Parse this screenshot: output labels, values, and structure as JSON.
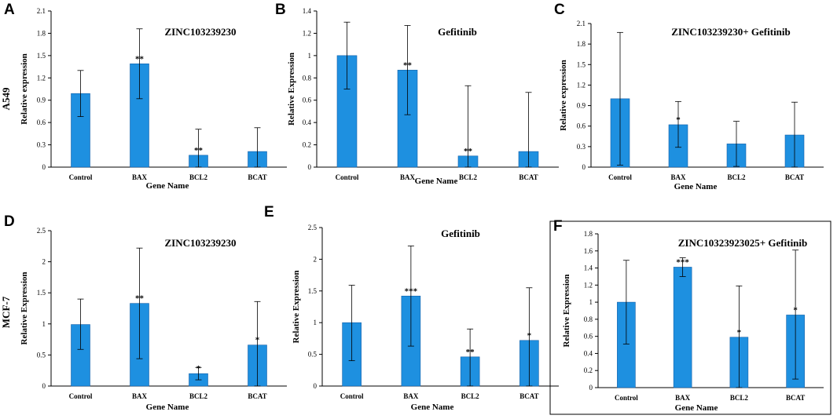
{
  "rows": [
    {
      "label": "A549"
    },
    {
      "label": "MCF-7"
    }
  ],
  "chart_data": [
    {
      "type": "bar",
      "panel": "A",
      "title": "ZINC103239230",
      "xlabel": "Gene Name",
      "ylabel": "Relative expression",
      "categories": [
        "Control",
        "BAX",
        "BCL2",
        "BCAT"
      ],
      "values": [
        0.99,
        1.39,
        0.16,
        0.21
      ],
      "error_high": [
        1.3,
        1.86,
        0.51,
        0.53
      ],
      "error_low": [
        0.68,
        0.92,
        0.0,
        0.0
      ],
      "significance": [
        "",
        "**",
        "**",
        ""
      ],
      "yticks": [
        0,
        0.3,
        0.6,
        0.9,
        1.2,
        1.5,
        1.8,
        2.1
      ],
      "ytick_labels": [
        "0",
        "0.3",
        "0.6",
        "0.9",
        "1.2",
        "1.5",
        "1.8",
        "2.1"
      ],
      "ylim": [
        0,
        2.1
      ]
    },
    {
      "type": "bar",
      "panel": "B",
      "title": "Gefitinib",
      "xlabel": "Gene Name",
      "ylabel": "Relative Expression",
      "categories": [
        "Control",
        "BAX",
        "BCL2",
        "BCAT"
      ],
      "values": [
        1.0,
        0.87,
        0.1,
        0.14
      ],
      "error_high": [
        1.3,
        1.27,
        0.73,
        0.67
      ],
      "error_low": [
        0.7,
        0.47,
        0.0,
        0.0
      ],
      "significance": [
        "",
        "**",
        "**",
        ""
      ],
      "yticks": [
        0,
        0.2,
        0.4,
        0.6,
        0.8,
        1,
        1.2,
        1.4
      ],
      "ytick_labels": [
        "0",
        "0.2",
        "0.4",
        "0.6",
        "0.8",
        "1",
        "1.2",
        "1.4"
      ],
      "ylim": [
        0,
        1.4
      ]
    },
    {
      "type": "bar",
      "panel": "C",
      "title": "ZINC103239230+ Gefitinib",
      "xlabel": "Gene Name",
      "ylabel": "Relative expression",
      "categories": [
        "Control",
        "BAX",
        "BCL2",
        "BCAT"
      ],
      "values": [
        1.0,
        0.62,
        0.34,
        0.47
      ],
      "error_high": [
        1.97,
        0.96,
        0.67,
        0.95
      ],
      "error_low": [
        0.03,
        0.29,
        0.01,
        0.0
      ],
      "significance": [
        "",
        "*",
        "",
        ""
      ],
      "yticks": [
        0,
        0.3,
        0.6,
        0.9,
        1.2,
        1.5,
        1.8,
        2.1
      ],
      "ytick_labels": [
        "0",
        "0.3",
        "0.6",
        "0.9",
        "1.2",
        "1.5",
        "1.8",
        "2.1"
      ],
      "ylim": [
        0,
        2.1
      ]
    },
    {
      "type": "bar",
      "panel": "D",
      "title": "ZINC103239230",
      "xlabel": "Gene Name",
      "ylabel": "Relative Expression",
      "categories": [
        "Control",
        "BAX",
        "BCL2",
        "BCAT"
      ],
      "values": [
        0.99,
        1.33,
        0.2,
        0.66
      ],
      "error_high": [
        1.4,
        2.22,
        0.3,
        1.36
      ],
      "error_low": [
        0.59,
        0.44,
        0.1,
        0.0
      ],
      "significance": [
        "",
        "**",
        "*",
        "*"
      ],
      "yticks": [
        0,
        0.5,
        1,
        1.5,
        2,
        2.5
      ],
      "ytick_labels": [
        "0",
        "0.5",
        "1",
        "1.5",
        "2",
        "2.5"
      ],
      "ylim": [
        0,
        2.5
      ]
    },
    {
      "type": "bar",
      "panel": "E",
      "title": "Gefitinib",
      "xlabel": "Gene Name",
      "ylabel": "Relative Expression",
      "categories": [
        "Control",
        "BAX",
        "BCL2",
        "BCAT"
      ],
      "values": [
        1.0,
        1.42,
        0.46,
        0.72
      ],
      "error_high": [
        1.59,
        2.21,
        0.9,
        1.55
      ],
      "error_low": [
        0.4,
        0.63,
        0.0,
        0.0
      ],
      "significance": [
        "",
        "***",
        "**",
        "*"
      ],
      "yticks": [
        0,
        0.5,
        1,
        1.5,
        2,
        2.5
      ],
      "ytick_labels": [
        "0",
        "0.5",
        "1",
        "1.5",
        "2",
        "2.5"
      ],
      "ylim": [
        0,
        2.5
      ]
    },
    {
      "type": "bar",
      "panel": "F",
      "title": "ZINC10323923025+ Gefitinib",
      "xlabel": "Gene Name",
      "ylabel": "Relative Expression",
      "categories": [
        "Control",
        "BAX",
        "BCL2",
        "BCAT"
      ],
      "values": [
        1.0,
        1.41,
        0.59,
        0.85
      ],
      "error_high": [
        1.49,
        1.52,
        1.19,
        1.61
      ],
      "error_low": [
        0.51,
        1.3,
        0.0,
        0.1
      ],
      "significance": [
        "",
        "***",
        "*",
        "*"
      ],
      "yticks": [
        0,
        0.2,
        0.4,
        0.6,
        0.8,
        1,
        1.2,
        1.4,
        1.6,
        1.8
      ],
      "ytick_labels": [
        "0",
        "0.2",
        "0.4",
        "0.6",
        "0.8",
        "1",
        "1.2",
        "1.4",
        "1.6",
        "1.8"
      ],
      "ylim": [
        0,
        1.8
      ]
    }
  ]
}
